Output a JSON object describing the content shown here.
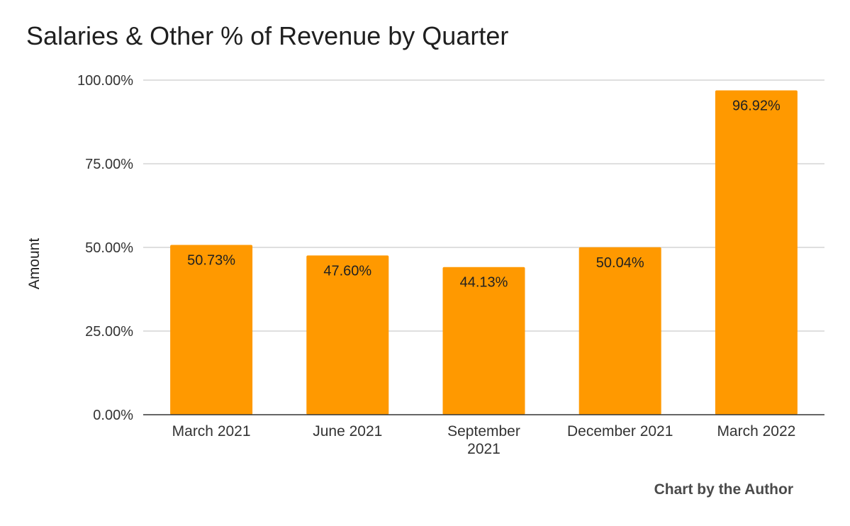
{
  "chart_data": {
    "type": "bar",
    "title": "Salaries & Other % of Revenue by Quarter",
    "xlabel": "",
    "ylabel": "Amount",
    "categories": [
      "March 2021",
      "June 2021",
      "September 2021",
      "December 2021",
      "March 2022"
    ],
    "category_label_lines": [
      [
        "March 2021"
      ],
      [
        "June 2021"
      ],
      [
        "September",
        "2021"
      ],
      [
        "December 2021"
      ],
      [
        "March 2022"
      ]
    ],
    "values": [
      50.73,
      47.6,
      44.13,
      50.04,
      96.92
    ],
    "data_labels": [
      "50.73%",
      "47.60%",
      "44.13%",
      "50.04%",
      "96.92%"
    ],
    "ylim": [
      0,
      100
    ],
    "yticks": [
      0,
      25,
      50,
      75,
      100
    ],
    "ytick_labels": [
      "0.00%",
      "25.00%",
      "50.00%",
      "75.00%",
      "100.00%"
    ],
    "grid": true,
    "legend": "none",
    "bar_color": "#ff9900",
    "grid_color": "#cccccc",
    "axis_color": "#333333"
  },
  "footer": {
    "credit": "Chart by the Author"
  }
}
